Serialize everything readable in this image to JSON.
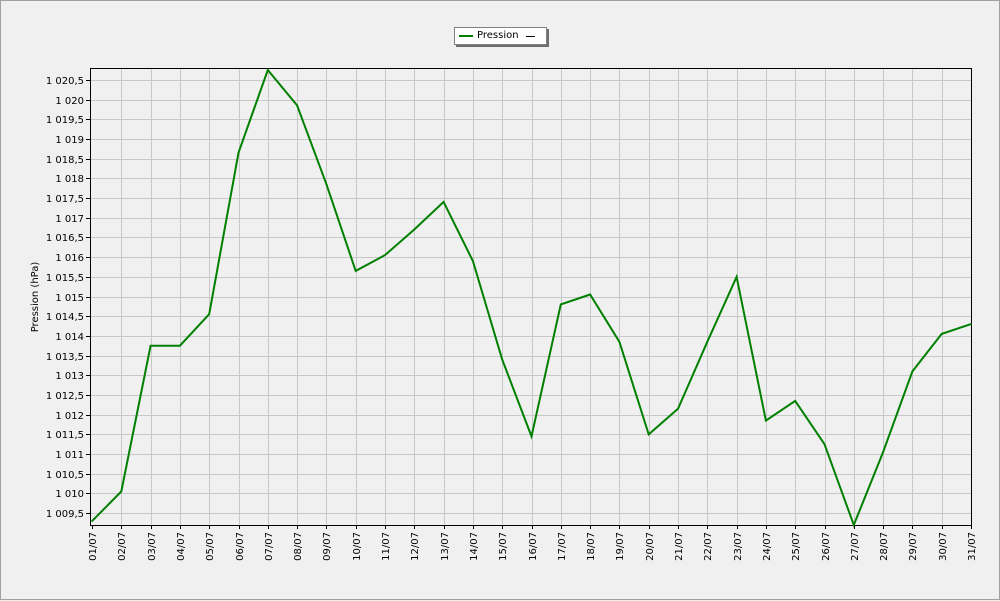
{
  "chart_data": {
    "type": "line",
    "title": "",
    "xlabel": "",
    "ylabel": "Pression (hPa)",
    "legend": {
      "placement": "top-center",
      "entries": [
        {
          "name": "Pression",
          "marker": "—"
        }
      ]
    },
    "grid": true,
    "ylim": [
      1009.2,
      1020.8
    ],
    "x": [
      "01/07",
      "02/07",
      "03/07",
      "04/07",
      "05/07",
      "06/07",
      "07/07",
      "08/07",
      "09/07",
      "10/07",
      "11/07",
      "12/07",
      "13/07",
      "14/07",
      "15/07",
      "16/07",
      "17/07",
      "18/07",
      "19/07",
      "20/07",
      "21/07",
      "22/07",
      "23/07",
      "24/07",
      "25/07",
      "26/07",
      "27/07",
      "28/07",
      "29/07",
      "30/07",
      "31/07"
    ],
    "yticks": [
      {
        "value": 1009.5,
        "label": "1 009,5"
      },
      {
        "value": 1010,
        "label": "1 010"
      },
      {
        "value": 1010.5,
        "label": "1 010,5"
      },
      {
        "value": 1011,
        "label": "1 011"
      },
      {
        "value": 1011.5,
        "label": "1 011,5"
      },
      {
        "value": 1012,
        "label": "1 012"
      },
      {
        "value": 1012.5,
        "label": "1 012,5"
      },
      {
        "value": 1013,
        "label": "1 013"
      },
      {
        "value": 1013.5,
        "label": "1 013,5"
      },
      {
        "value": 1014,
        "label": "1 014"
      },
      {
        "value": 1014.5,
        "label": "1 014,5"
      },
      {
        "value": 1015,
        "label": "1 015"
      },
      {
        "value": 1015.5,
        "label": "1 015,5"
      },
      {
        "value": 1016,
        "label": "1 016"
      },
      {
        "value": 1016.5,
        "label": "1 016,5"
      },
      {
        "value": 1017,
        "label": "1 017"
      },
      {
        "value": 1017.5,
        "label": "1 017,5"
      },
      {
        "value": 1018,
        "label": "1 018"
      },
      {
        "value": 1018.5,
        "label": "1 018,5"
      },
      {
        "value": 1019,
        "label": "1 019"
      },
      {
        "value": 1019.5,
        "label": "1 019,5"
      },
      {
        "value": 1020,
        "label": "1 020"
      },
      {
        "value": 1020.5,
        "label": "1 020,5"
      }
    ],
    "series": [
      {
        "name": "Pression",
        "color": "#008000",
        "values": [
          1009.3,
          1010.05,
          1013.75,
          1013.75,
          1014.55,
          1018.65,
          1020.75,
          1019.85,
          1017.85,
          1015.65,
          1016.05,
          1016.7,
          1017.4,
          1015.9,
          1013.4,
          1011.45,
          1014.8,
          1015.05,
          1013.85,
          1011.5,
          1012.15,
          1013.85,
          1015.5,
          1011.85,
          1012.35,
          1011.25,
          1009.2,
          1011.05,
          1013.1,
          1014.05,
          1014.3
        ]
      }
    ]
  },
  "style": {
    "plot_background": "#f0f0f0",
    "grid_color": "#c8c8c8",
    "axis_color": "#000000",
    "line_color": "#008000"
  }
}
